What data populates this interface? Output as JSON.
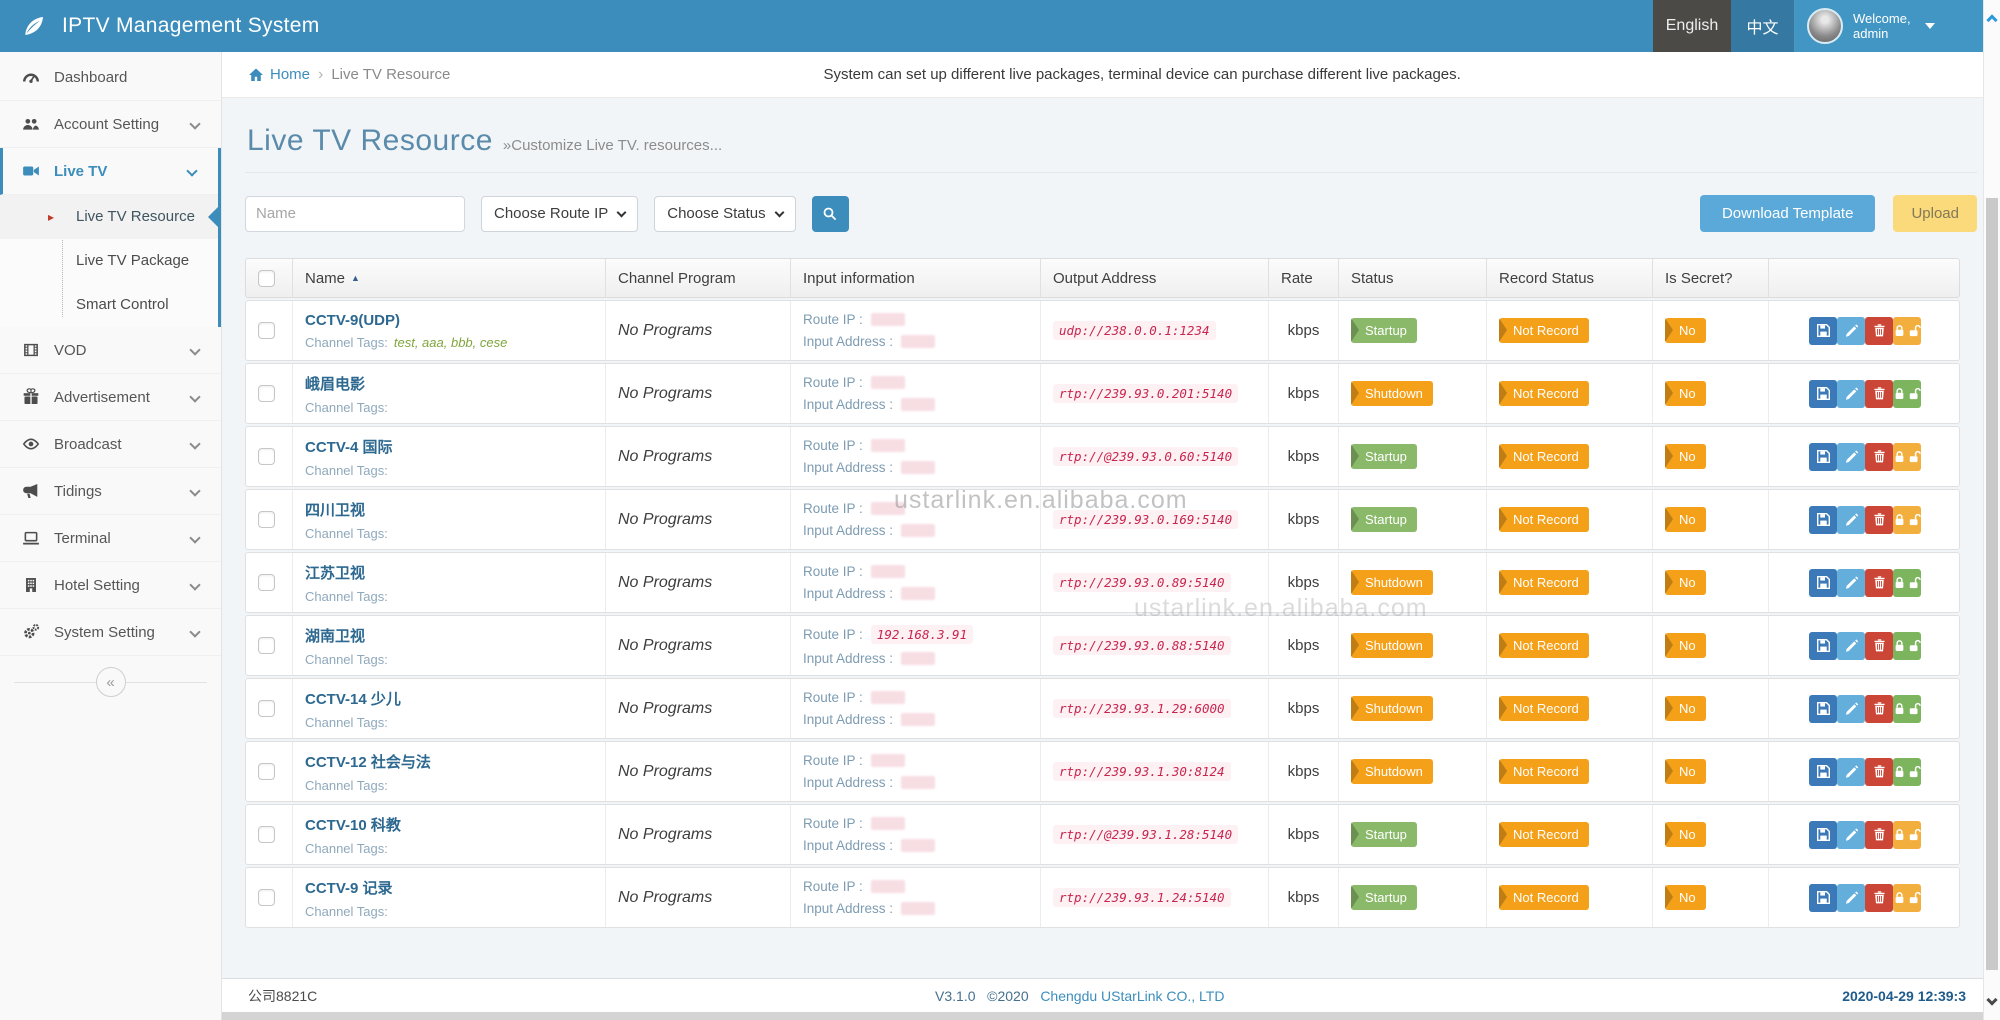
{
  "theme": {
    "accent": "#3c8dbc",
    "green_badge": "#8bb96a",
    "orange_badge": "#f5a019",
    "save_btn": "#3b79b8",
    "edit_btn": "#64aedc",
    "delete_btn": "#cb4637",
    "lock_btn": "#f3af3d",
    "unlock_btn": "#7db45e",
    "download_btn": "#5aa9d9",
    "upload_btn": "#fada7a"
  },
  "header": {
    "title": "IPTV Management System",
    "lang_english": "English",
    "lang_chinese": "中文",
    "welcome_line1": "Welcome,",
    "welcome_line2": "admin"
  },
  "sidebar": {
    "items": [
      {
        "label": "Dashboard",
        "icon": "gauge",
        "expandable": false,
        "active": false
      },
      {
        "label": "Account Setting",
        "icon": "users",
        "expandable": true,
        "active": false
      },
      {
        "label": "Live TV",
        "icon": "video-camera",
        "expandable": true,
        "active": true
      },
      {
        "label": "VOD",
        "icon": "film",
        "expandable": true,
        "active": false
      },
      {
        "label": "Advertisement",
        "icon": "gift",
        "expandable": true,
        "active": false
      },
      {
        "label": "Broadcast",
        "icon": "eye",
        "expandable": true,
        "active": false
      },
      {
        "label": "Tidings",
        "icon": "megaphone",
        "expandable": true,
        "active": false
      },
      {
        "label": "Terminal",
        "icon": "laptop",
        "expandable": true,
        "active": false
      },
      {
        "label": "Hotel Setting",
        "icon": "building",
        "expandable": true,
        "active": false
      },
      {
        "label": "System Setting",
        "icon": "gears",
        "expandable": true,
        "active": false
      }
    ],
    "live_tv_submenu": [
      {
        "label": "Live TV Resource",
        "active": true
      },
      {
        "label": "Live TV Package",
        "active": false
      },
      {
        "label": "Smart Control",
        "active": false
      }
    ],
    "collapse_glyph": "«"
  },
  "breadcrumb": {
    "home": "Home",
    "separator": "›",
    "current": "Live TV Resource",
    "hint": "System can set up different live packages, terminal device can purchase different live packages."
  },
  "page": {
    "title": "Live TV Resource",
    "subtitle": "»Customize Live TV. resources..."
  },
  "filters": {
    "name_placeholder": "Name",
    "route_ip_select": "Choose Route IP",
    "status_select": "Choose Status"
  },
  "toolbar": {
    "download_template": "Download Template",
    "upload": "Upload"
  },
  "table": {
    "headers": [
      "Name",
      "Channel Program",
      "Input information",
      "Output Address",
      "Rate",
      "Status",
      "Record Status",
      "Is Secret?"
    ],
    "sort_icon": "▲",
    "labels": {
      "channel_tags": "Channel Tags:",
      "route_ip": "Route IP :",
      "input_address": "Input Address :"
    },
    "rows": [
      {
        "name": "CCTV-9(UDP)",
        "tags": "test, aaa, bbb, cese",
        "program": "No Programs",
        "route_ip": "",
        "output_address": "udp://238.0.0.1:1234",
        "rate": "kbps",
        "status": "Startup",
        "status_color": "green",
        "record_status": "Not Record",
        "is_secret": "No",
        "locked": true
      },
      {
        "name": "峨眉电影",
        "tags": "",
        "program": "No Programs",
        "route_ip": "",
        "output_address": "rtp://239.93.0.201:5140",
        "rate": "kbps",
        "status": "Shutdown",
        "status_color": "orange",
        "record_status": "Not Record",
        "is_secret": "No",
        "locked": false
      },
      {
        "name": "CCTV-4 国际",
        "tags": "",
        "program": "No Programs",
        "route_ip": "",
        "output_address": "rtp://@239.93.0.60:5140",
        "rate": "kbps",
        "status": "Startup",
        "status_color": "green",
        "record_status": "Not Record",
        "is_secret": "No",
        "locked": true
      },
      {
        "name": "四川卫视",
        "tags": "",
        "program": "No Programs",
        "route_ip": "",
        "output_address": "rtp://239.93.0.169:5140",
        "rate": "kbps",
        "status": "Startup",
        "status_color": "green",
        "record_status": "Not Record",
        "is_secret": "No",
        "locked": true
      },
      {
        "name": "江苏卫视",
        "tags": "",
        "program": "No Programs",
        "route_ip": "",
        "output_address": "rtp://239.93.0.89:5140",
        "rate": "kbps",
        "status": "Shutdown",
        "status_color": "orange",
        "record_status": "Not Record",
        "is_secret": "No",
        "locked": false
      },
      {
        "name": "湖南卫视",
        "tags": "",
        "program": "No Programs",
        "route_ip": "192.168.3.91",
        "output_address": "rtp://239.93.0.88:5140",
        "rate": "kbps",
        "status": "Shutdown",
        "status_color": "orange",
        "record_status": "Not Record",
        "is_secret": "No",
        "locked": false
      },
      {
        "name": "CCTV-14 少儿",
        "tags": "",
        "program": "No Programs",
        "route_ip": "",
        "output_address": "rtp://239.93.1.29:6000",
        "rate": "kbps",
        "status": "Shutdown",
        "status_color": "orange",
        "record_status": "Not Record",
        "is_secret": "No",
        "locked": false
      },
      {
        "name": "CCTV-12 社会与法",
        "tags": "",
        "program": "No Programs",
        "route_ip": "",
        "output_address": "rtp://239.93.1.30:8124",
        "rate": "kbps",
        "status": "Shutdown",
        "status_color": "orange",
        "record_status": "Not Record",
        "is_secret": "No",
        "locked": false
      },
      {
        "name": "CCTV-10 科教",
        "tags": "",
        "program": "No Programs",
        "route_ip": "",
        "output_address": "rtp://@239.93.1.28:5140",
        "rate": "kbps",
        "status": "Startup",
        "status_color": "green",
        "record_status": "Not Record",
        "is_secret": "No",
        "locked": true
      },
      {
        "name": "CCTV-9 记录",
        "tags": "",
        "program": "No Programs",
        "route_ip": "",
        "output_address": "rtp://239.93.1.24:5140",
        "rate": "kbps",
        "status": "Startup",
        "status_color": "green",
        "record_status": "Not Record",
        "is_secret": "No",
        "locked": true
      }
    ]
  },
  "watermark": "ustarlink.en.alibaba.com",
  "footer": {
    "company": "公司8821C",
    "version": "V3.1.0",
    "copyright": "©2020",
    "org": "Chengdu UStarLink CO., LTD",
    "datetime": "2020-04-29 12:39:3"
  }
}
